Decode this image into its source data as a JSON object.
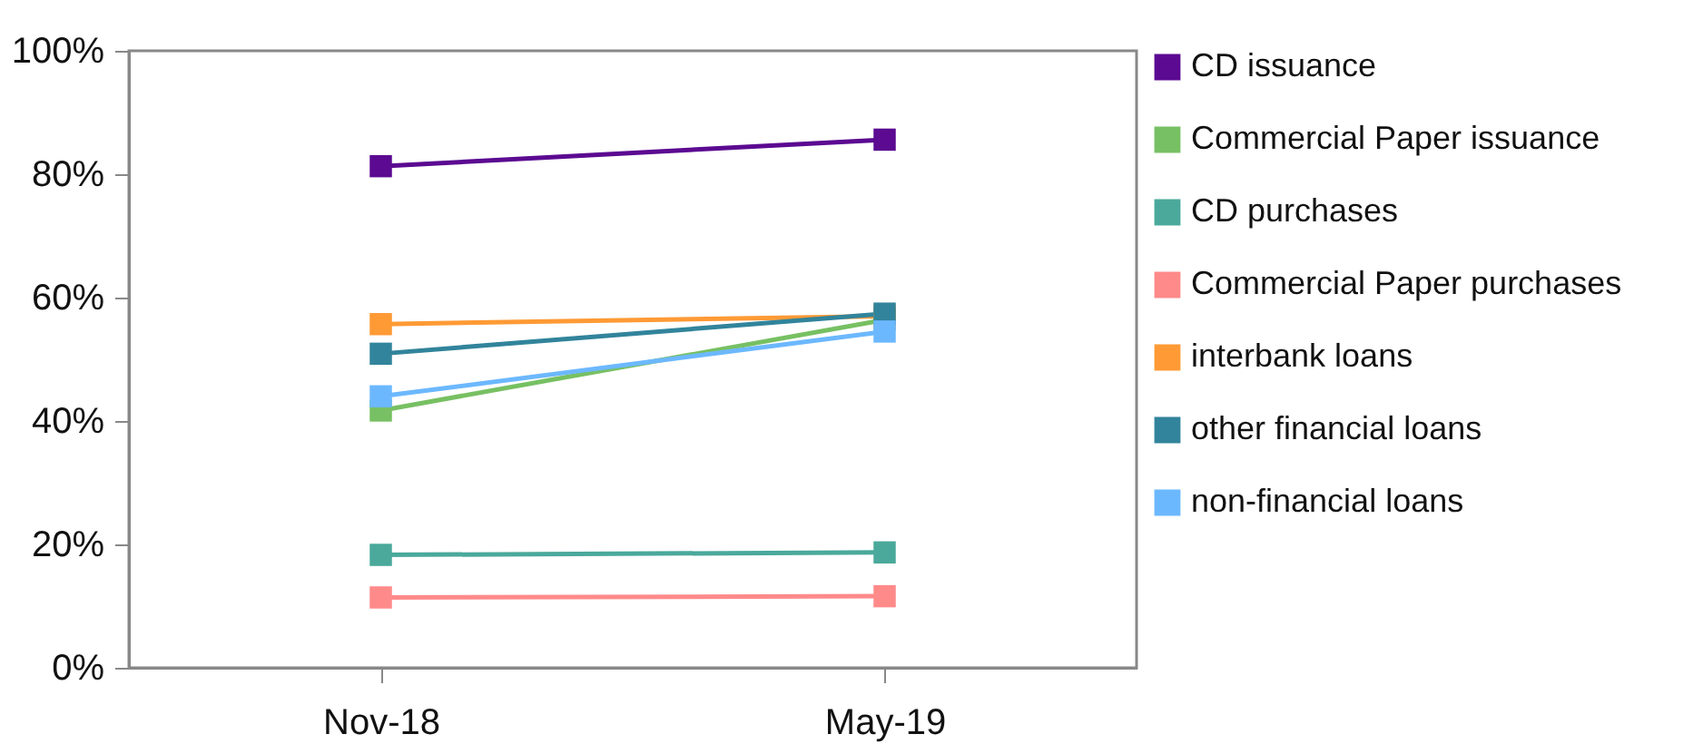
{
  "chart_data": {
    "type": "line",
    "categories": [
      "Nov-18",
      "May-19"
    ],
    "series": [
      {
        "name": "CD issuance",
        "color": "#5b0a91",
        "values": [
          81.3,
          85.6
        ]
      },
      {
        "name": "Commercial Paper issuance",
        "color": "#77c063",
        "values": [
          41.7,
          56.4
        ]
      },
      {
        "name": "CD purchases",
        "color": "#4aa99b",
        "values": [
          18.3,
          18.7
        ]
      },
      {
        "name": "Commercial Paper purchases",
        "color": "#ff8a8a",
        "values": [
          11.4,
          11.6
        ]
      },
      {
        "name": "interbank loans",
        "color": "#ff9a35",
        "values": [
          55.7,
          57.0
        ]
      },
      {
        "name": "other financial loans",
        "color": "#31849b",
        "values": [
          50.9,
          57.4
        ]
      },
      {
        "name": "non-financial loans",
        "color": "#6cb8ff",
        "values": [
          44.0,
          54.5
        ]
      }
    ],
    "ylim": [
      0,
      100
    ],
    "yticks": [
      {
        "value": 0,
        "label": "0%"
      },
      {
        "value": 20,
        "label": "20%"
      },
      {
        "value": 40,
        "label": "40%"
      },
      {
        "value": 60,
        "label": "60%"
      },
      {
        "value": 80,
        "label": "80%"
      },
      {
        "value": 100,
        "label": "100%"
      }
    ],
    "grid": false,
    "legend": "right",
    "marker": "square",
    "line_style": "solid"
  }
}
